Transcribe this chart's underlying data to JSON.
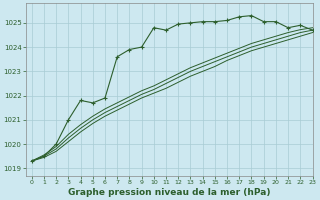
{
  "title": "Graphe pression niveau de la mer (hPa)",
  "bg_color": "#cde8f0",
  "grid_color": "#a8ccd4",
  "line_color": "#2d5f2d",
  "xlim": [
    -0.5,
    23
  ],
  "ylim": [
    1018.7,
    1025.8
  ],
  "yticks": [
    1019,
    1020,
    1021,
    1022,
    1023,
    1024,
    1025
  ],
  "xticks": [
    0,
    1,
    2,
    3,
    4,
    5,
    6,
    7,
    8,
    9,
    10,
    11,
    12,
    13,
    14,
    15,
    16,
    17,
    18,
    19,
    20,
    21,
    22,
    23
  ],
  "main_series": [
    1019.3,
    1019.5,
    1020.0,
    1021.0,
    1021.8,
    1021.7,
    1021.9,
    1023.6,
    1023.9,
    1024.0,
    1024.8,
    1024.7,
    1024.95,
    1025.0,
    1025.05,
    1025.05,
    1025.1,
    1025.25,
    1025.3,
    1025.05,
    1025.05,
    1024.8,
    1024.9,
    1024.7
  ],
  "smooth_series": [
    [
      1019.3,
      1019.45,
      1019.7,
      1020.1,
      1020.5,
      1020.85,
      1021.15,
      1021.4,
      1021.65,
      1021.9,
      1022.1,
      1022.3,
      1022.55,
      1022.8,
      1023.0,
      1023.2,
      1023.45,
      1023.65,
      1023.85,
      1024.0,
      1024.15,
      1024.3,
      1024.45,
      1024.6
    ],
    [
      1019.3,
      1019.5,
      1019.8,
      1020.25,
      1020.65,
      1021.0,
      1021.3,
      1021.55,
      1021.8,
      1022.05,
      1022.25,
      1022.5,
      1022.75,
      1023.0,
      1023.2,
      1023.4,
      1023.6,
      1023.8,
      1024.0,
      1024.15,
      1024.3,
      1024.45,
      1024.6,
      1024.7
    ],
    [
      1019.3,
      1019.55,
      1019.9,
      1020.4,
      1020.8,
      1021.15,
      1021.45,
      1021.7,
      1021.95,
      1022.2,
      1022.4,
      1022.65,
      1022.9,
      1023.15,
      1023.35,
      1023.55,
      1023.75,
      1023.95,
      1024.15,
      1024.3,
      1024.45,
      1024.6,
      1024.72,
      1024.8
    ]
  ],
  "title_fontsize": 6.5,
  "tick_fontsize": 5.0,
  "xtick_fontsize": 4.5
}
